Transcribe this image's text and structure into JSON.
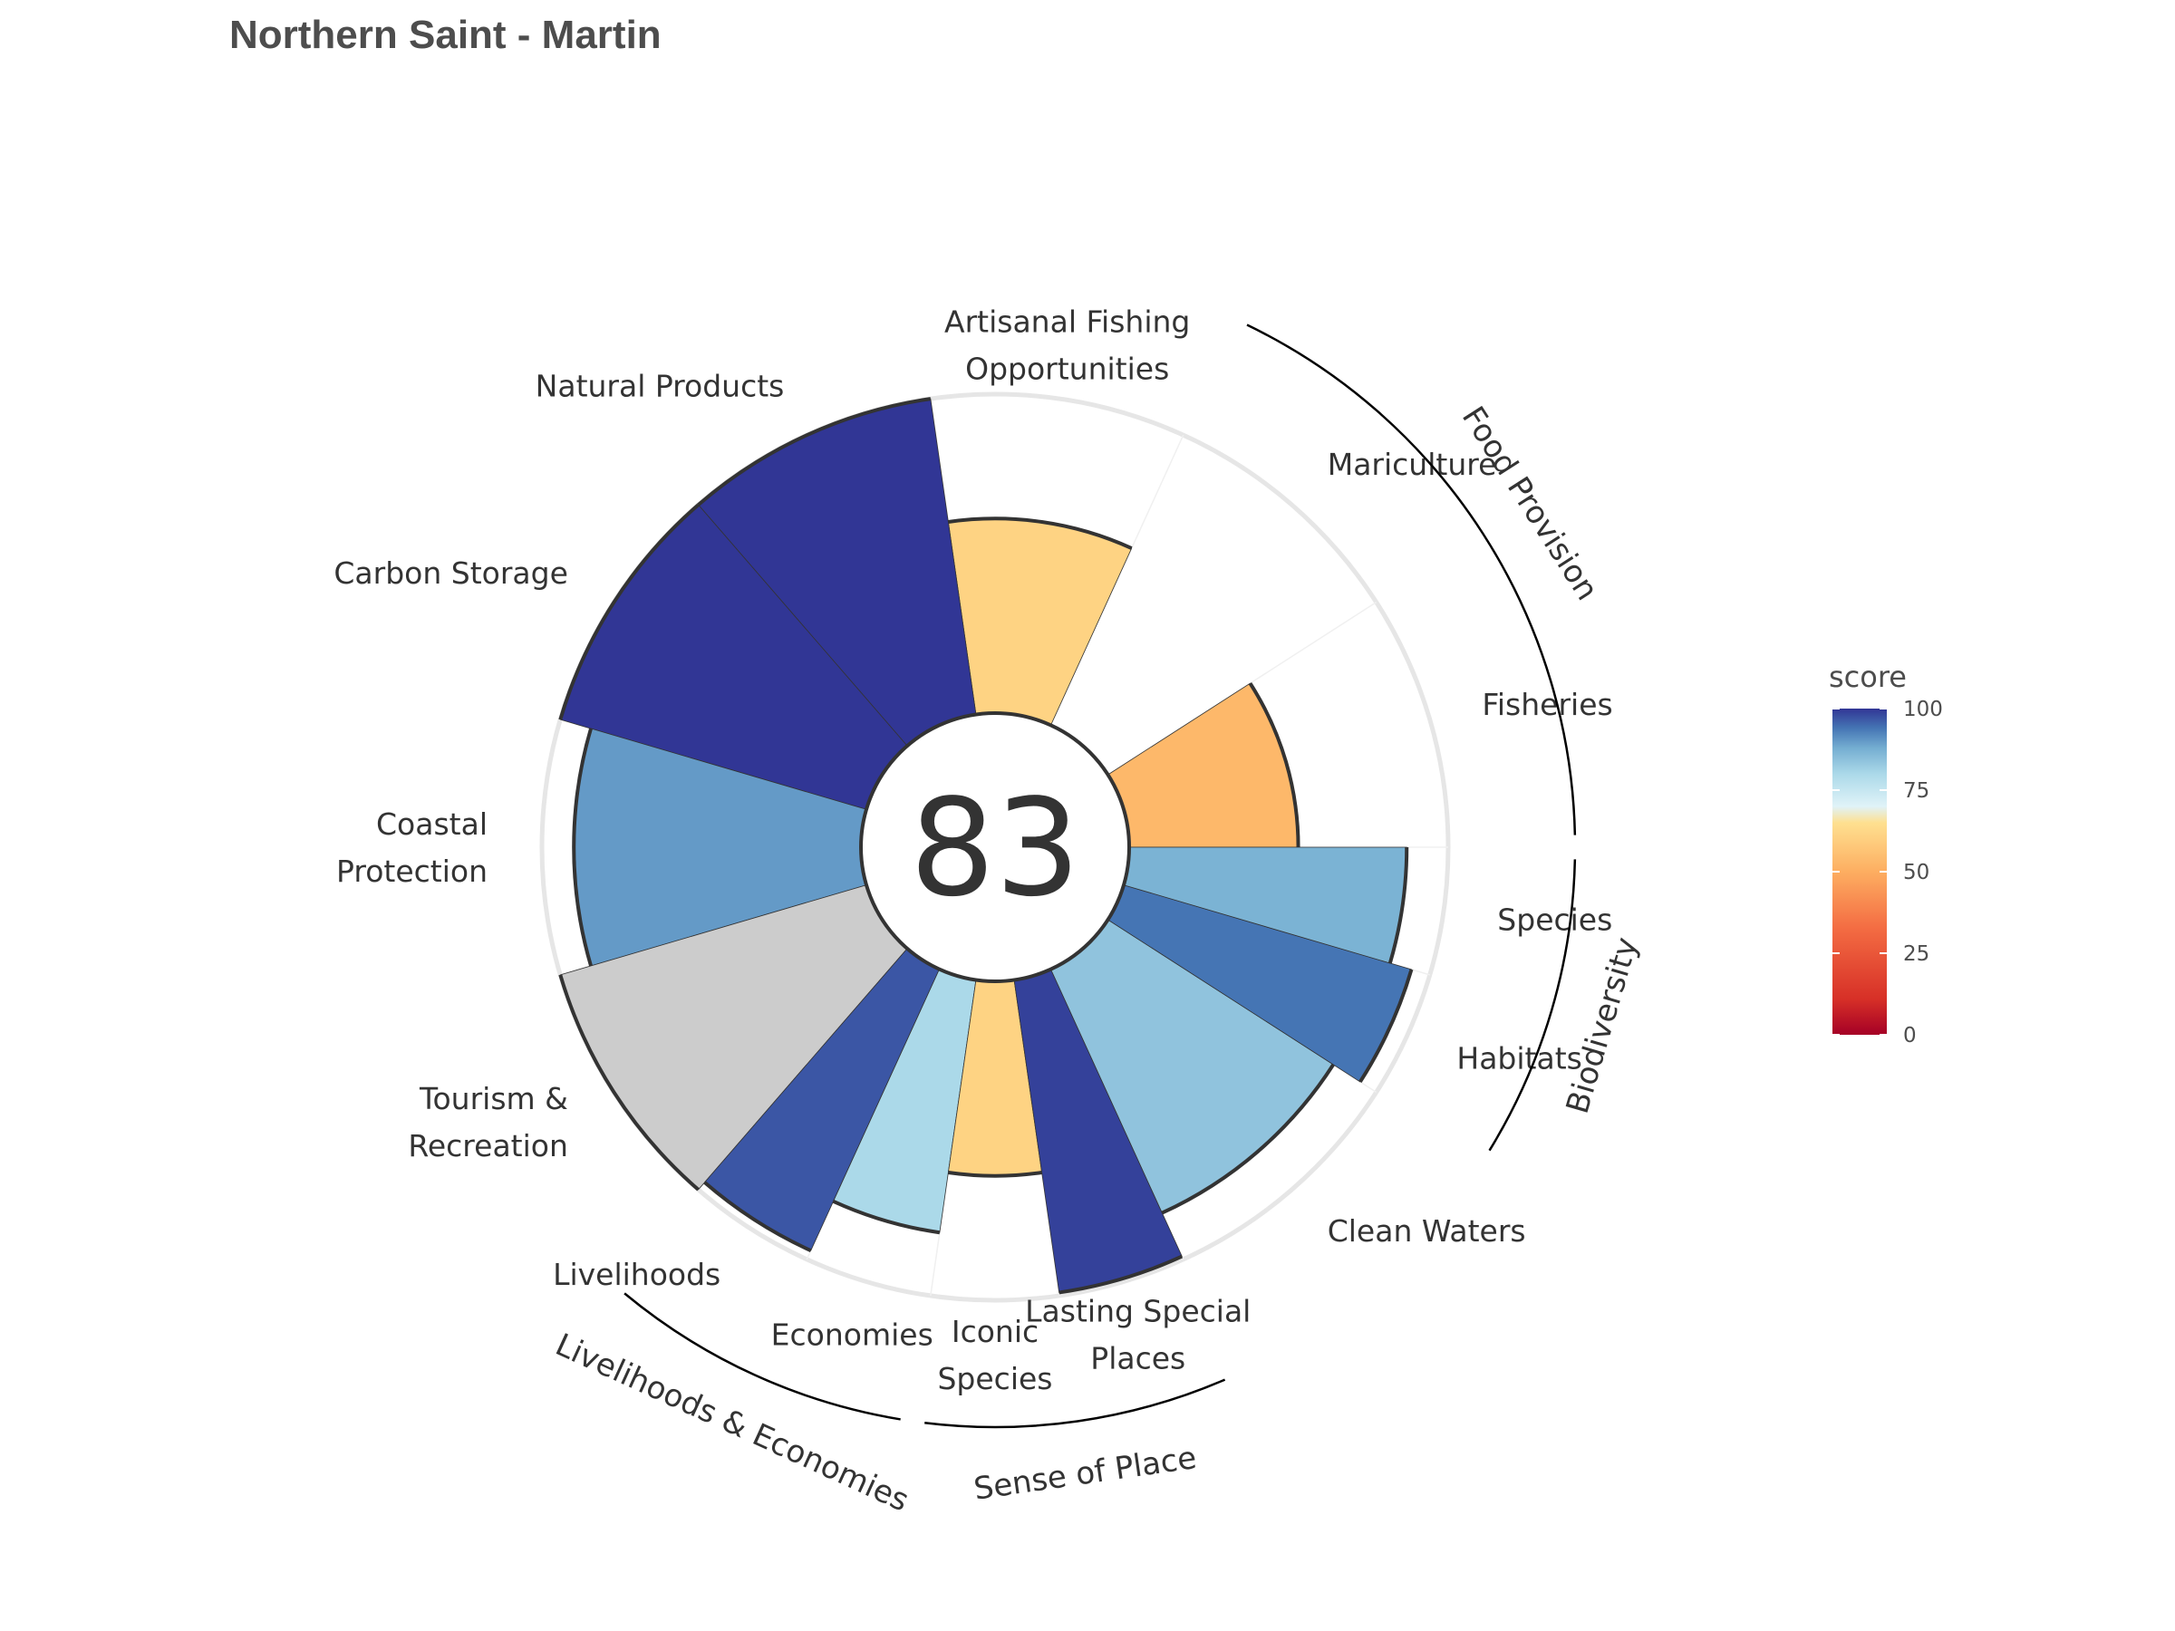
{
  "title": "Northern Saint - Martin",
  "chart_data": {
    "type": "bar",
    "subtype": "polar-flower",
    "center_score": "83",
    "petals": [
      {
        "goal": "Fisheries",
        "label": [
          "Fisheries"
        ],
        "score": 53,
        "weight": 1.0
      },
      {
        "goal": "Mariculture",
        "label": [
          "Mariculture"
        ],
        "score": null,
        "weight": 1.0
      },
      {
        "goal": "Artisanal Fishing Opportunities",
        "label": [
          "Artisanal Fishing",
          "Opportunities"
        ],
        "score": 61,
        "weight": 1.0
      },
      {
        "goal": "Natural Products",
        "label": [
          "Natural Products"
        ],
        "score": 100,
        "weight": 1.0
      },
      {
        "goal": "Carbon Storage",
        "label": [
          "Carbon Storage"
        ],
        "score": 100,
        "weight": 1.0
      },
      {
        "goal": "Coastal Protection",
        "label": [
          "Coastal",
          "Protection"
        ],
        "score": 90,
        "weight": 1.0
      },
      {
        "goal": "Tourism & Recreation",
        "label": [
          "Tourism &",
          "Recreation"
        ],
        "score": 100,
        "weight": 1.0,
        "no_data": true
      },
      {
        "goal": "Livelihoods",
        "label": [
          "Livelihoods"
        ],
        "score": 97,
        "weight": 0.5
      },
      {
        "goal": "Economies",
        "label": [
          "Economies"
        ],
        "score": 80,
        "weight": 0.5
      },
      {
        "goal": "Iconic Species",
        "label": [
          "Iconic",
          "Species"
        ],
        "score": 61,
        "weight": 0.5
      },
      {
        "goal": "Lasting Special Places",
        "label": [
          "Lasting Special",
          "Places"
        ],
        "score": 99,
        "weight": 0.5
      },
      {
        "goal": "Clean Waters",
        "label": [
          "Clean Waters"
        ],
        "score": 84,
        "weight": 1.0
      },
      {
        "goal": "Habitats",
        "label": [
          "Habitats"
        ],
        "score": 94,
        "weight": 0.5
      },
      {
        "goal": "Species",
        "label": [
          "Species"
        ],
        "score": 87,
        "weight": 0.5
      }
    ],
    "groups": [
      {
        "name": "Food Provision",
        "members": [
          "Fisheries",
          "Mariculture"
        ]
      },
      {
        "name": "Biodiversity",
        "members": [
          "Species",
          "Habitats"
        ]
      },
      {
        "name": "Sense of Place",
        "members": [
          "Iconic Species",
          "Lasting Special Places"
        ]
      },
      {
        "name": "Livelihoods & Economies",
        "members": [
          "Livelihoods",
          "Economies"
        ]
      }
    ],
    "ylim": [
      0,
      100
    ],
    "legend": {
      "title": "score",
      "ticks": [
        "0",
        "25",
        "50",
        "75",
        "100"
      ],
      "position": "right",
      "colors": [
        "#a50026",
        "#d73027",
        "#f46d43",
        "#fdae61",
        "#fee090",
        "#e0f3f8",
        "#abd9e9",
        "#74add1",
        "#4575b4",
        "#313695"
      ]
    },
    "no_data_color": "#cccccc"
  }
}
